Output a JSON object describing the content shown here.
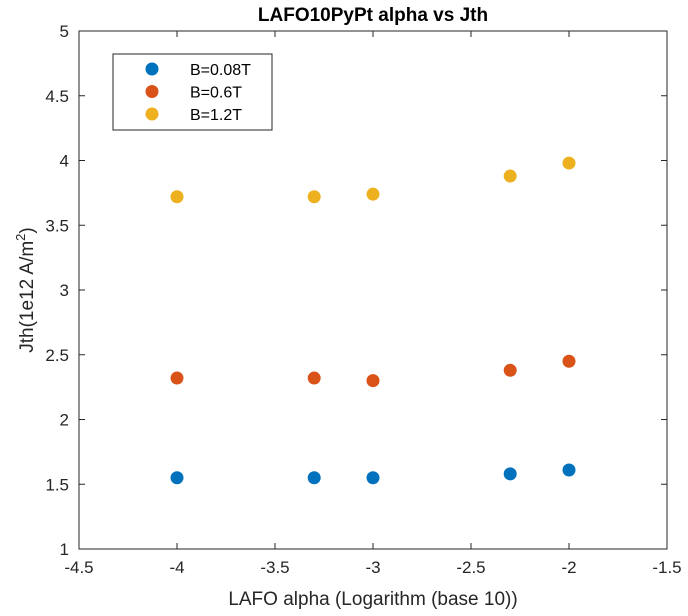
{
  "chart_data": {
    "type": "scatter",
    "title": "LAFO10PyPt alpha vs Jth",
    "xlabel": "LAFO alpha (Logarithm (base 10))",
    "ylabel": "Jth(1e12 A/m²)",
    "ylabel_parts": {
      "base": "Jth(1e12 A/m",
      "sup": "2",
      "end": ")"
    },
    "xlim": [
      -4.5,
      -1.5
    ],
    "ylim": [
      1,
      5
    ],
    "xticks": [
      -4.5,
      -4,
      -3.5,
      -3,
      -2.5,
      -2,
      -1.5
    ],
    "xtick_labels": [
      "-4.5",
      "-4",
      "-3.5",
      "-3",
      "-2.5",
      "-2",
      "-1.5"
    ],
    "yticks": [
      1,
      1.5,
      2,
      2.5,
      3,
      3.5,
      4,
      4.5,
      5
    ],
    "ytick_labels": [
      "1",
      "1.5",
      "2",
      "2.5",
      "3",
      "3.5",
      "4",
      "4.5",
      "5"
    ],
    "grid": false,
    "legend_position": "top-left",
    "series": [
      {
        "name": "B=0.08T",
        "color": "#0072BD",
        "x": [
          -4,
          -3.3,
          -3,
          -2.3,
          -2
        ],
        "y": [
          1.55,
          1.55,
          1.55,
          1.58,
          1.61
        ]
      },
      {
        "name": "B=0.6T",
        "color": "#D95319",
        "x": [
          -4,
          -3.3,
          -3,
          -2.3,
          -2
        ],
        "y": [
          2.32,
          2.32,
          2.3,
          2.38,
          2.45
        ]
      },
      {
        "name": "B=1.2T",
        "color": "#EDB120",
        "x": [
          -4,
          -3.3,
          -3,
          -2.3,
          -2
        ],
        "y": [
          3.72,
          3.72,
          3.74,
          3.88,
          3.98
        ]
      }
    ]
  }
}
